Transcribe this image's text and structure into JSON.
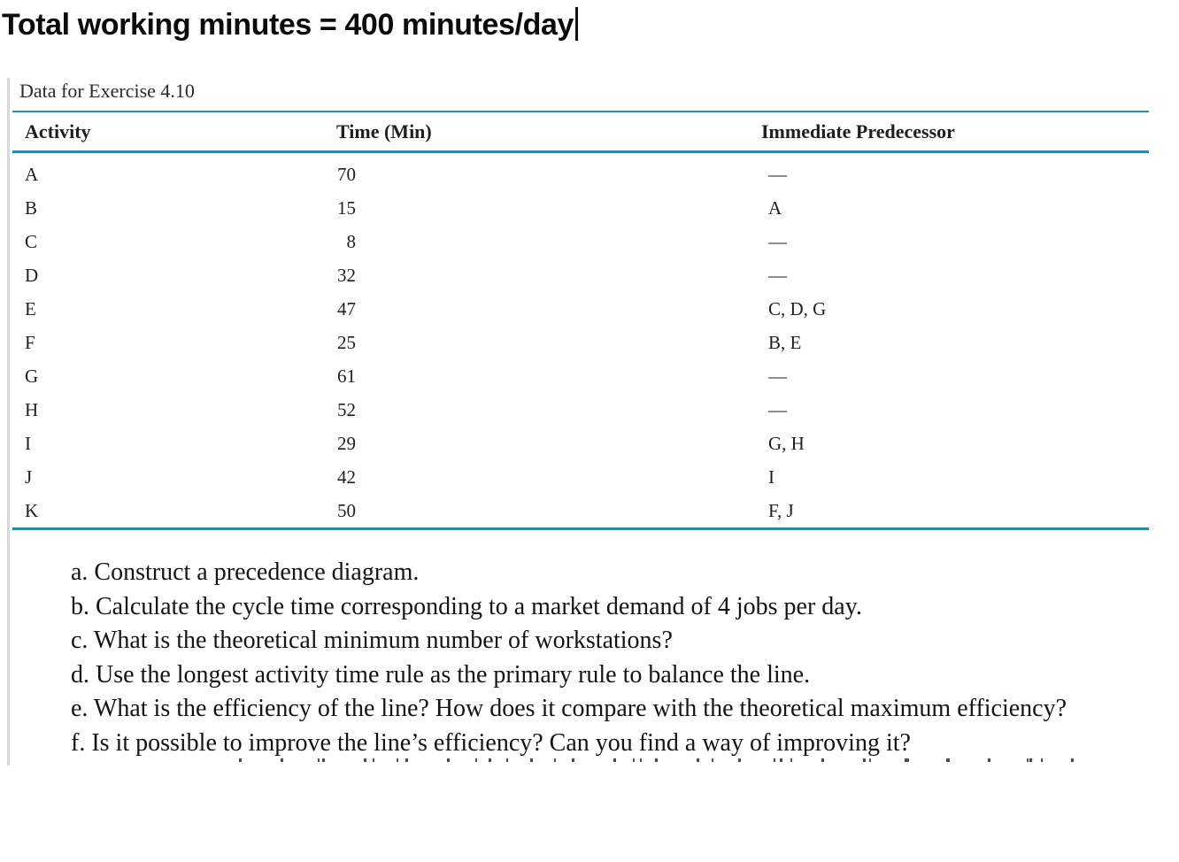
{
  "header": {
    "title": "Total working minutes = 400 minutes/day"
  },
  "exercise": {
    "caption": "Data for Exercise 4.10",
    "table": {
      "columns": [
        "Activity",
        "Time (Min)",
        "Immediate Predecessor"
      ],
      "rows": [
        {
          "activity": "A",
          "time": "70",
          "predecessor": "—"
        },
        {
          "activity": "B",
          "time": "15",
          "predecessor": "A"
        },
        {
          "activity": "C",
          "time": "8",
          "predecessor": "—"
        },
        {
          "activity": "D",
          "time": "32",
          "predecessor": "—"
        },
        {
          "activity": "E",
          "time": "47",
          "predecessor": "C, D, G"
        },
        {
          "activity": "F",
          "time": "25",
          "predecessor": "B, E"
        },
        {
          "activity": "G",
          "time": "61",
          "predecessor": "—"
        },
        {
          "activity": "H",
          "time": "52",
          "predecessor": "—"
        },
        {
          "activity": "I",
          "time": "29",
          "predecessor": "G, H"
        },
        {
          "activity": "J",
          "time": "42",
          "predecessor": "I"
        },
        {
          "activity": "K",
          "time": "50",
          "predecessor": "F, J"
        }
      ]
    },
    "questions": [
      "a. Construct a precedence diagram.",
      "b. Calculate the cycle time corresponding to a market demand of 4 jobs per day.",
      "c. What is the theoretical minimum number of workstations?",
      "d. Use the longest activity time rule as the primary rule to balance the line.",
      "e. What is the efficiency of the line? How does it compare with the theoretical maximum efficiency?",
      "f. Is it possible to improve the line’s efficiency? Can you find a way of improving it?"
    ]
  },
  "colors": {
    "rule_teal": "#2e8b9e",
    "panel_border": "#d9d9d9"
  }
}
